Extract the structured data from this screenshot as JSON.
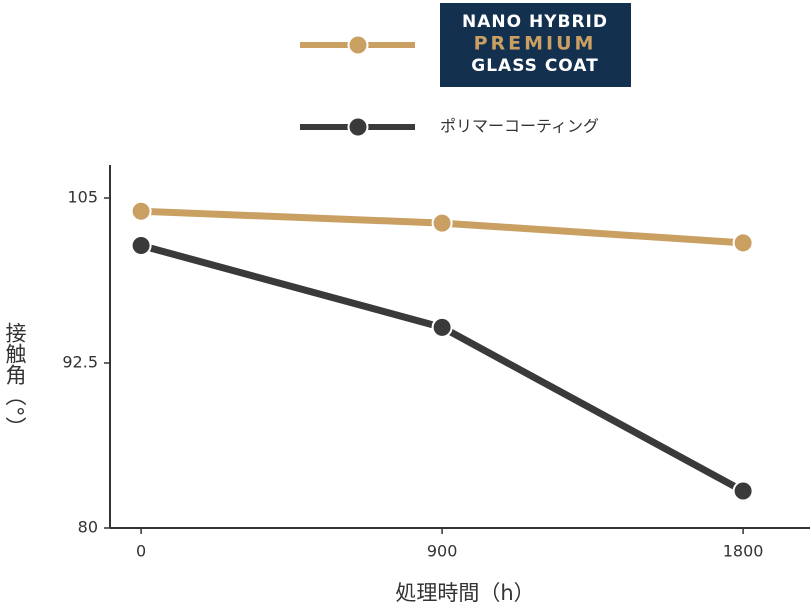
{
  "chart_data": {
    "type": "line",
    "x": [
      0,
      900,
      1800
    ],
    "series": [
      {
        "name": [
          "NANO HYBRID",
          "PREMIUM",
          "GLASS COAT"
        ],
        "color": "#c9a062",
        "values": [
          104.0,
          103.1,
          101.6
        ]
      },
      {
        "name": "ポリマーコーティング",
        "color": "#3a3a3a",
        "values": [
          101.4,
          95.2,
          82.8
        ]
      }
    ],
    "xlim": [
      -93,
      2000
    ],
    "xticks": [
      0,
      900,
      1800
    ],
    "ylim": [
      80,
      107.5
    ],
    "yticks": [
      {
        "value": 80,
        "label": "80"
      },
      {
        "value": 92.5,
        "label": "92.5"
      },
      {
        "value": 105,
        "label": "105"
      }
    ],
    "x_label": "処理時間（h）",
    "y_label": "接触角（°）",
    "grid": false
  }
}
